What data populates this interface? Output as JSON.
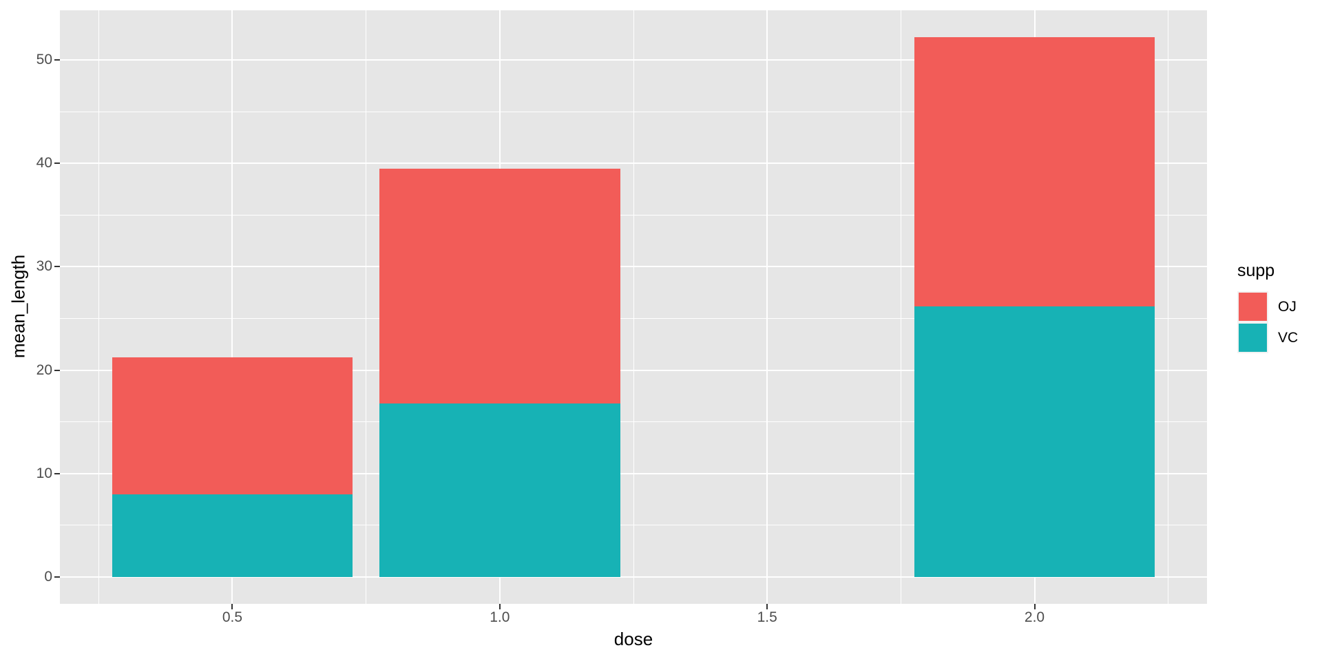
{
  "chart_data": {
    "type": "bar",
    "stacked": true,
    "title": "",
    "xlabel": "dose",
    "ylabel": "mean_length",
    "x": [
      0.5,
      1.0,
      2.0
    ],
    "series": [
      {
        "name": "OJ",
        "color": "#F25C58",
        "values": [
          13.23,
          22.7,
          26.06
        ]
      },
      {
        "name": "VC",
        "color": "#17B2B5",
        "values": [
          7.98,
          16.77,
          26.14
        ]
      }
    ],
    "stack_totals": [
      21.21,
      39.47,
      52.2
    ],
    "bar_width": 0.45,
    "xlim": [
      0.1775,
      2.3225
    ],
    "ylim": [
      -2.61,
      54.81
    ],
    "x_ticks": [
      0.5,
      1.0,
      1.5,
      2.0
    ],
    "x_tick_labels": [
      "0.5",
      "1.0",
      "1.5",
      "2.0"
    ],
    "x_minor_ticks": [
      0.25,
      0.75,
      1.25,
      1.75,
      2.25
    ],
    "y_ticks": [
      0,
      10,
      20,
      30,
      40,
      50
    ],
    "y_tick_labels": [
      "0",
      "10",
      "20",
      "30",
      "40",
      "50"
    ],
    "y_minor_ticks": [
      5,
      15,
      25,
      35,
      45
    ],
    "grid": true,
    "legend": {
      "title": "supp",
      "position": "right",
      "entries": [
        "OJ",
        "VC"
      ]
    }
  },
  "colors": {
    "figure_background": "#FFFFFF",
    "panel_background": "#E6E6E6",
    "gridline": "#FFFFFF",
    "axis_text": "#4D4D4D",
    "title_text": "#000000",
    "tick_mark": "#333333",
    "legend_key_background": "#F2F2F2"
  }
}
